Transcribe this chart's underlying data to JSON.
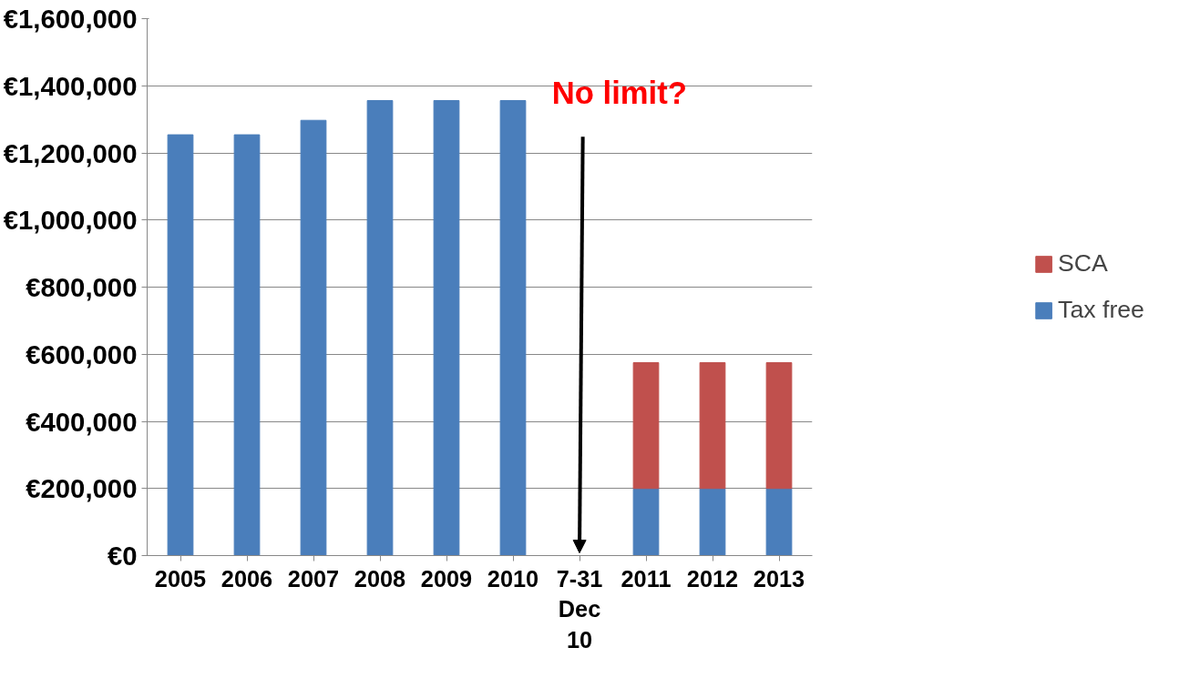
{
  "chart_data": {
    "type": "bar",
    "stacked": true,
    "categories": [
      "2005",
      "2006",
      "2007",
      "2008",
      "2009",
      "2010",
      "7-31 Dec 10",
      "2011",
      "2012",
      "2013"
    ],
    "series": [
      {
        "name": "Tax free",
        "color": "#4a7ebb",
        "values": [
          1254000,
          1254000,
          1297000,
          1356000,
          1356000,
          1356000,
          null,
          200000,
          200000,
          200000
        ]
      },
      {
        "name": "SCA",
        "color": "#c0504d",
        "values": [
          null,
          null,
          null,
          null,
          null,
          null,
          null,
          375000,
          375000,
          375000
        ]
      }
    ],
    "ylim": [
      0,
      1600000
    ],
    "yticks": [
      {
        "value": 0,
        "label": "€0"
      },
      {
        "value": 200000,
        "label": "€200,000"
      },
      {
        "value": 400000,
        "label": "€400,000"
      },
      {
        "value": 600000,
        "label": "€600,000"
      },
      {
        "value": 800000,
        "label": "€800,000"
      },
      {
        "value": 1000000,
        "label": "€1,000,000"
      },
      {
        "value": 1200000,
        "label": "€1,200,000"
      },
      {
        "value": 1400000,
        "label": "€1,400,000"
      },
      {
        "value": 1600000,
        "label": "€1,600,000"
      }
    ],
    "annotations": [
      "No limit?"
    ],
    "grid": "y",
    "legend": "right"
  }
}
